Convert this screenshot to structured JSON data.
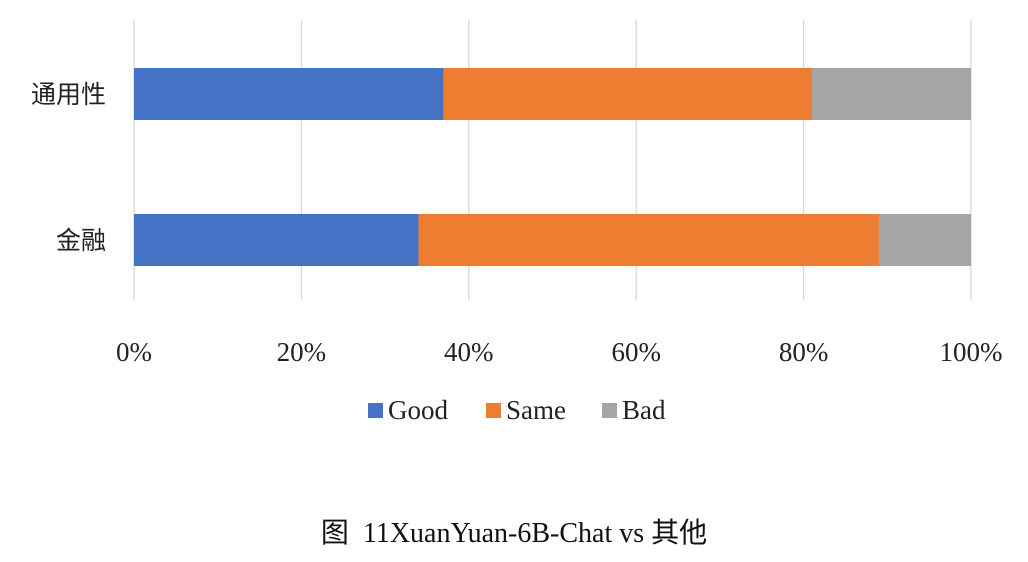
{
  "chart_data": {
    "type": "bar",
    "orientation": "horizontal",
    "stacked": true,
    "percent": true,
    "categories": [
      "通用性",
      "金融"
    ],
    "series": [
      {
        "name": "Good",
        "values": [
          37,
          34
        ],
        "color": "#4472C4"
      },
      {
        "name": "Same",
        "values": [
          44,
          55
        ],
        "color": "#ED7D31"
      },
      {
        "name": "Bad",
        "values": [
          19,
          11
        ],
        "color": "#A5A5A5"
      }
    ],
    "x_ticks": [
      "0%",
      "20%",
      "40%",
      "60%",
      "80%",
      "100%"
    ],
    "xlim": [
      0,
      100
    ],
    "grid": "vertical",
    "legend_position": "bottom"
  },
  "caption": "图  11XuanYuan-6B-Chat vs 其他"
}
